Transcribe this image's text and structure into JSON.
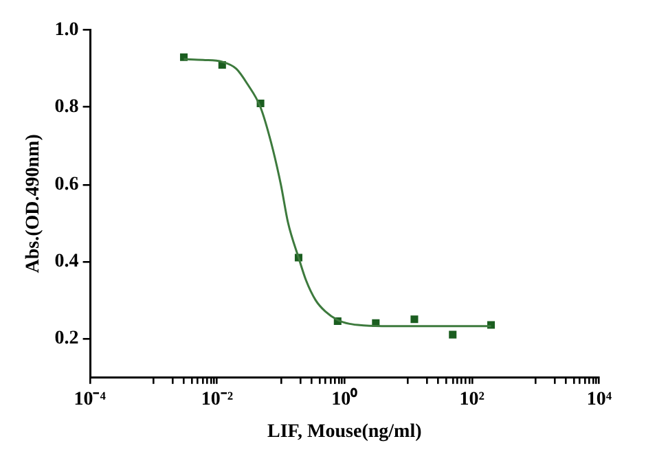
{
  "chart_data": {
    "type": "scatter",
    "xlabel": "LIF, Mouse(ng/ml)",
    "ylabel": "Abs.(OD.490nm)",
    "log": "x",
    "grid": false,
    "legend": false,
    "xlim": [
      0.0001,
      10000
    ],
    "xticks": [
      {
        "value": 0.0001,
        "label": "10⁻⁴"
      },
      {
        "value": 0.001,
        "label": null
      },
      {
        "value": 0.002,
        "label": null
      },
      {
        "value": 0.003,
        "label": null
      },
      {
        "value": 0.004,
        "label": null
      },
      {
        "value": 0.005,
        "label": null
      },
      {
        "value": 0.006,
        "label": null
      },
      {
        "value": 0.007,
        "label": null
      },
      {
        "value": 0.008,
        "label": null
      },
      {
        "value": 0.009,
        "label": null
      },
      {
        "value": 0.01,
        "label": "10⁻²"
      },
      {
        "value": 0.1,
        "label": null
      },
      {
        "value": 0.2,
        "label": null
      },
      {
        "value": 0.3,
        "label": null
      },
      {
        "value": 0.4,
        "label": null
      },
      {
        "value": 0.5,
        "label": null
      },
      {
        "value": 0.6,
        "label": null
      },
      {
        "value": 0.7,
        "label": null
      },
      {
        "value": 0.8,
        "label": null
      },
      {
        "value": 0.9,
        "label": null
      },
      {
        "value": 1,
        "label": "10⁰"
      },
      {
        "value": 10,
        "label": null
      },
      {
        "value": 20,
        "label": null
      },
      {
        "value": 30,
        "label": null
      },
      {
        "value": 40,
        "label": null
      },
      {
        "value": 50,
        "label": null
      },
      {
        "value": 60,
        "label": null
      },
      {
        "value": 70,
        "label": null
      },
      {
        "value": 80,
        "label": null
      },
      {
        "value": 90,
        "label": null
      },
      {
        "value": 100,
        "label": "10²"
      },
      {
        "value": 1000,
        "label": null
      },
      {
        "value": 2000,
        "label": null
      },
      {
        "value": 3000,
        "label": null
      },
      {
        "value": 4000,
        "label": null
      },
      {
        "value": 5000,
        "label": null
      },
      {
        "value": 6000,
        "label": null
      },
      {
        "value": 7000,
        "label": null
      },
      {
        "value": 8000,
        "label": null
      },
      {
        "value": 9000,
        "label": null
      },
      {
        "value": 10000,
        "label": "10⁴"
      }
    ],
    "ylim": [
      0.1,
      1.0
    ],
    "yticks": [
      0.2,
      0.4,
      0.6,
      0.8,
      {
        "value": 1.0,
        "label": "1.0"
      }
    ],
    "series": [
      {
        "marker": "square",
        "color": "#1b5e20",
        "x": [
          0.003,
          0.012,
          0.048,
          0.19,
          0.78,
          3.1,
          12.5,
          50,
          200
        ],
        "values": [
          0.93,
          0.91,
          0.81,
          0.41,
          0.245,
          0.24,
          0.25,
          0.21,
          0.235
        ]
      },
      {
        "type": "line",
        "marker": "none",
        "line_style": "solid",
        "color": "#3d7a3d",
        "x": [
          0.003,
          0.006,
          0.012,
          0.02,
          0.03,
          0.048,
          0.07,
          0.1,
          0.13,
          0.19,
          0.25,
          0.35,
          0.5,
          0.78,
          1.2,
          2,
          5,
          20,
          200
        ],
        "values": [
          0.925,
          0.923,
          0.918,
          0.9,
          0.86,
          0.8,
          0.71,
          0.6,
          0.5,
          0.41,
          0.35,
          0.3,
          0.27,
          0.248,
          0.238,
          0.234,
          0.232,
          0.232,
          0.232
        ]
      }
    ]
  }
}
